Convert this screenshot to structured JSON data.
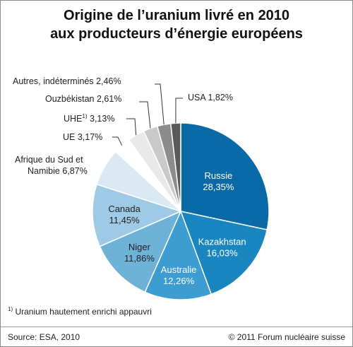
{
  "chart_data": {
    "type": "pie",
    "title_line1": "Origine de l’uranium livré en 2010",
    "title_line2": "aux producteurs d’énergie européens",
    "slices": [
      {
        "label": "Russie",
        "value": 28.35,
        "value_text": "28,35%",
        "color": "#0a6aa8"
      },
      {
        "label": "Kazakhstan",
        "value": 16.03,
        "value_text": "16,03%",
        "color": "#1a86c0"
      },
      {
        "label": "Australie",
        "value": 12.26,
        "value_text": "12,26%",
        "color": "#3d9cd0"
      },
      {
        "label": "Niger",
        "value": 11.86,
        "value_text": "11,86%",
        "color": "#6fb2d8"
      },
      {
        "label": "Canada",
        "value": 11.45,
        "value_text": "11,45%",
        "color": "#9fcae6"
      },
      {
        "label": "Afrique du Sud et Namibie",
        "value": 6.87,
        "value_text": "6,87%",
        "color": "#dbe9f4"
      },
      {
        "label": "UE",
        "value": 3.17,
        "value_text": "3,17%",
        "color": "#ffffff"
      },
      {
        "label": "UHE",
        "value": 3.13,
        "value_text": "3,13%",
        "color": "#e9e9e9"
      },
      {
        "label": "Ouzbékistan",
        "value": 2.61,
        "value_text": "2,61%",
        "color": "#c9c9c9"
      },
      {
        "label": "Autres, indéterminés",
        "value": 2.46,
        "value_text": "2,46%",
        "color": "#8c8c8c"
      },
      {
        "label": "USA",
        "value": 1.82,
        "value_text": "1,82%",
        "color": "#5a5a5a"
      }
    ],
    "labels_outside": {
      "usa": "USA 1,82%",
      "autres": "Autres, indéterminés 2,46%",
      "ouzbekistan": "Ouzbékistan 2,61%",
      "uhe_name": "UHE",
      "uhe_sup": "1)",
      "uhe_value": " 3,13%",
      "ue": "UE 3,17%",
      "afrique_line1": "Afrique du Sud et",
      "afrique_line2": "Namibie 6,87%"
    }
  },
  "footnote": {
    "marker": "1)",
    "text": " Uranium hautement enrichi appauvri"
  },
  "source": "Source: ESA, 2010",
  "copyright": "© 2011 Forum nucléaire suisse"
}
